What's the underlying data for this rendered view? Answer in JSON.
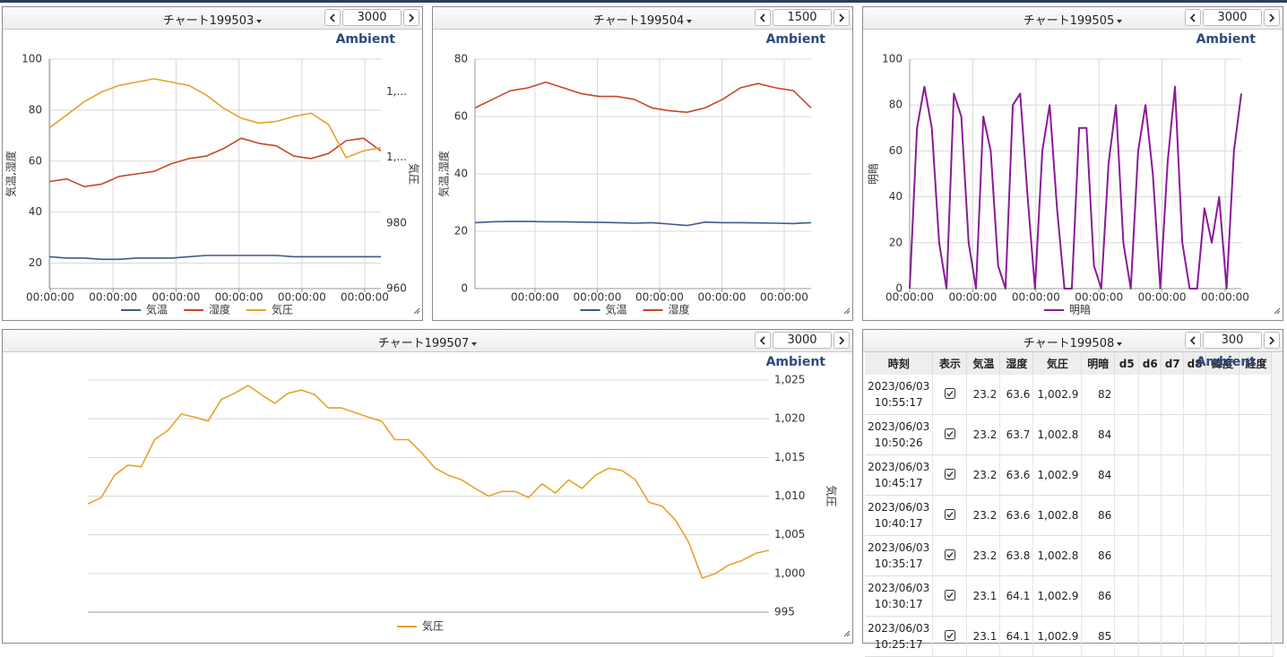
{
  "panels": [
    {
      "title": "チャート199503",
      "count": "3000",
      "brand": "Ambient"
    },
    {
      "title": "チャート199504",
      "count": "1500",
      "brand": "Ambient"
    },
    {
      "title": "チャート199505",
      "count": "3000",
      "brand": "Ambient"
    },
    {
      "title": "チャート199507",
      "count": "3000",
      "brand": "Ambient"
    },
    {
      "title": "チャート199508",
      "count": "300",
      "brand": "Ambient"
    }
  ],
  "chart_data": [
    {
      "type": "line",
      "ylabel": "気温,湿度",
      "y2label": "気圧",
      "x_labels": [
        "00:00:00",
        "00:00:00",
        "00:00:00",
        "00:00:00",
        "00:00:00",
        "00:00:00"
      ],
      "ylim": [
        10,
        100
      ],
      "yticks": [
        20,
        40,
        60,
        80,
        100
      ],
      "y2lim": [
        960,
        1030
      ],
      "y2ticks": [
        960,
        980,
        {
          "value": 1000,
          "label": "1,..."
        },
        {
          "value": 1020,
          "label": "1,..."
        }
      ],
      "grid": true,
      "xgrid": true,
      "series": [
        {
          "name": "気温",
          "color": "#3d5a8c",
          "values": [
            22.5,
            22,
            22,
            21.5,
            21.5,
            22,
            22,
            22,
            22.5,
            23,
            23,
            23,
            23,
            23,
            22.5,
            22.5,
            22.5,
            22.5,
            22.5,
            22.5
          ]
        },
        {
          "name": "湿度",
          "color": "#c9452b",
          "values": [
            52,
            53,
            50,
            51,
            54,
            55,
            56,
            59,
            61,
            62,
            65,
            69,
            67,
            66,
            62,
            61,
            63,
            68,
            69,
            64
          ]
        },
        {
          "name": "気圧",
          "color": "#e9a12c",
          "axis": "y2",
          "values": [
            1009,
            1013,
            1017,
            1020,
            1022,
            1023,
            1024,
            1023,
            1022,
            1019,
            1015,
            1012,
            1010.5,
            1011,
            1012.5,
            1013.5,
            1010,
            1000,
            1002,
            1003
          ]
        }
      ]
    },
    {
      "type": "line",
      "ylabel": "気温,湿度",
      "x_labels": [
        "00:00:00",
        "00:00:00",
        "00:00:00",
        "00:00:00",
        "00:00:00"
      ],
      "ylim": [
        0,
        80
      ],
      "yticks": [
        0,
        20,
        40,
        60,
        80
      ],
      "grid": true,
      "xgrid": true,
      "series": [
        {
          "name": "気温",
          "color": "#3d5a8c",
          "values": [
            23,
            23.3,
            23.4,
            23.4,
            23.3,
            23.3,
            23.2,
            23.1,
            23,
            22.8,
            23,
            22.5,
            22,
            23.2,
            23,
            23,
            22.9,
            22.8,
            22.7,
            23
          ]
        },
        {
          "name": "湿度",
          "color": "#c9452b",
          "values": [
            63,
            66,
            69,
            70,
            72,
            70,
            68,
            67,
            67,
            66,
            63,
            62,
            61.5,
            63,
            66,
            70,
            71.5,
            70,
            69,
            63
          ]
        }
      ]
    },
    {
      "type": "line",
      "ylabel": "明暗",
      "x_labels": [
        "00:00:00",
        "00:00:00",
        "00:00:00",
        "00:00:00",
        "00:00:00",
        "00:00:00"
      ],
      "ylim": [
        0,
        100
      ],
      "yticks": [
        0,
        20,
        40,
        60,
        80,
        100
      ],
      "grid": true,
      "xgrid": true,
      "series": [
        {
          "name": "明暗",
          "color": "#8b1a98",
          "values": [
            0,
            70,
            88,
            70,
            20,
            0,
            85,
            75,
            20,
            0,
            75,
            60,
            10,
            0,
            80,
            85,
            40,
            0,
            60,
            80,
            35,
            0,
            0,
            70,
            70,
            10,
            0,
            55,
            80,
            20,
            0,
            60,
            80,
            50,
            0,
            55,
            88,
            20,
            0,
            0,
            35,
            20,
            40,
            0,
            60,
            85
          ]
        }
      ]
    },
    {
      "type": "line",
      "y2label": "気圧",
      "y2lim": [
        995,
        1025
      ],
      "y2ticks": [
        995,
        {
          "value": 1000,
          "label": "1,000"
        },
        {
          "value": 1005,
          "label": "1,005"
        },
        {
          "value": 1010,
          "label": "1,010"
        },
        {
          "value": 1015,
          "label": "1,015"
        },
        {
          "value": 1020,
          "label": "1,020"
        },
        {
          "value": 1025,
          "label": "1,025"
        }
      ],
      "grid": true,
      "xgrid": false,
      "series": [
        {
          "name": "気圧",
          "color": "#e9a12c",
          "axis": "y2",
          "values": [
            1009,
            1009.8,
            1012.7,
            1014,
            1013.8,
            1017.3,
            1018.5,
            1020.6,
            1020.2,
            1019.7,
            1022.5,
            1023.3,
            1024.3,
            1023.1,
            1022,
            1023.3,
            1023.7,
            1023.1,
            1021.4,
            1021.4,
            1020.8,
            1020.2,
            1019.7,
            1017.3,
            1017.3,
            1015.6,
            1013.6,
            1012.7,
            1012.1,
            1011,
            1010,
            1010.6,
            1010.6,
            1009.8,
            1011.6,
            1010.4,
            1012.1,
            1011,
            1012.7,
            1013.6,
            1013.3,
            1012.1,
            1009.2,
            1008.7,
            1006.9,
            1004,
            999.4,
            1000,
            1001.1,
            1001.7,
            1002.6,
            1003
          ]
        }
      ]
    }
  ],
  "table": {
    "columns": [
      "時刻",
      "表示",
      "気温",
      "湿度",
      "気圧",
      "明暗",
      "d5",
      "d6",
      "d7",
      "d8",
      "緯度",
      "経度"
    ],
    "rows": [
      [
        "2023/06/03",
        "10:55:17",
        "23.2",
        "63.6",
        "1,002.9",
        "82"
      ],
      [
        "2023/06/03",
        "10:50:26",
        "23.2",
        "63.7",
        "1,002.8",
        "84"
      ],
      [
        "2023/06/03",
        "10:45:17",
        "23.2",
        "63.6",
        "1,002.9",
        "84"
      ],
      [
        "2023/06/03",
        "10:40:17",
        "23.2",
        "63.6",
        "1,002.8",
        "86"
      ],
      [
        "2023/06/03",
        "10:35:17",
        "23.2",
        "63.8",
        "1,002.8",
        "86"
      ],
      [
        "2023/06/03",
        "10:30:17",
        "23.1",
        "64.1",
        "1,002.9",
        "86"
      ],
      [
        "2023/06/03",
        "10:25:17",
        "23.1",
        "64.1",
        "1,002.9",
        "85"
      ]
    ]
  }
}
